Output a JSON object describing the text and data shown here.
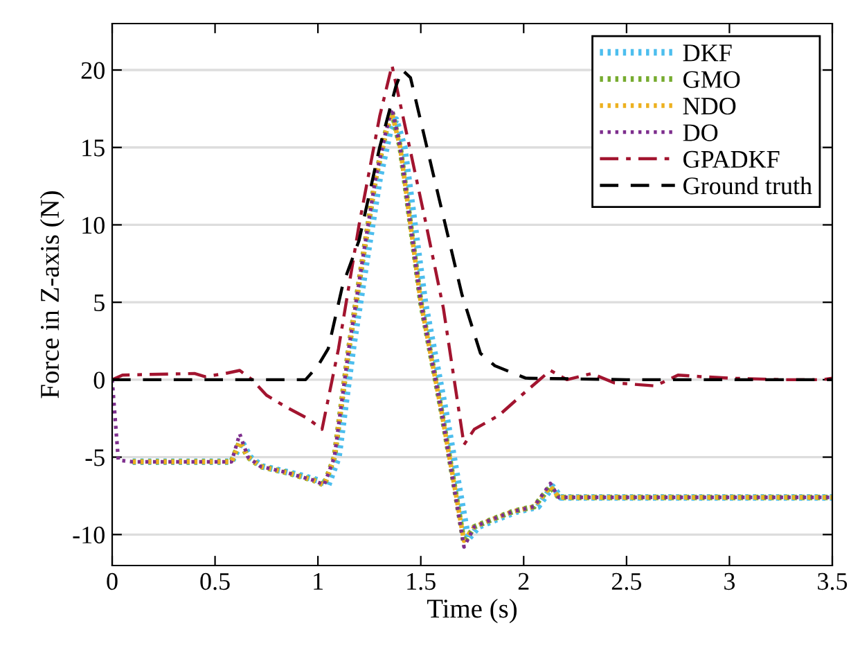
{
  "chart_data": {
    "type": "line",
    "xlabel": "Time (s)",
    "ylabel": "Force in Z-axis (N)",
    "xlim": [
      0,
      3.5
    ],
    "ylim": [
      -12,
      23
    ],
    "xticks": [
      0,
      0.5,
      1,
      1.5,
      2,
      2.5,
      3,
      3.5
    ],
    "yticks": [
      -10,
      -5,
      0,
      5,
      10,
      15,
      20
    ],
    "grid": "y",
    "legend": "top right",
    "marker": "none",
    "series": [
      {
        "name": "DKF",
        "color": "#4dbeee",
        "line_style": "dotted",
        "x": [
          0.1,
          0.58,
          0.63,
          0.67,
          0.73,
          0.86,
          0.92,
          1.0,
          1.05,
          1.1,
          1.17,
          1.24,
          1.3,
          1.35,
          1.38,
          1.42,
          1.52,
          1.62,
          1.73,
          1.78,
          1.87,
          1.97,
          2.07,
          2.14,
          2.18,
          2.5,
          3.0,
          3.5
        ],
        "values": [
          -5.3,
          -5.3,
          -4.0,
          -5.0,
          -5.6,
          -6.0,
          -6.2,
          -6.5,
          -6.8,
          -5.0,
          2,
          8,
          13,
          16,
          16.8,
          15,
          5,
          -2,
          -10.3,
          -9.5,
          -9,
          -8.5,
          -8.2,
          -6.9,
          -7.6,
          -7.6,
          -7.6,
          -7.6
        ]
      },
      {
        "name": "GMO",
        "color": "#77ac30",
        "line_style": "dotted",
        "x": [
          0.1,
          0.58,
          0.62,
          0.66,
          0.72,
          0.85,
          0.9,
          0.98,
          1.03,
          1.08,
          1.15,
          1.22,
          1.28,
          1.33,
          1.36,
          1.4,
          1.5,
          1.6,
          1.71,
          1.76,
          1.85,
          1.95,
          2.05,
          2.13,
          2.17,
          2.5,
          3.0,
          3.5
        ],
        "values": [
          -5.3,
          -5.3,
          -4.0,
          -5.0,
          -5.6,
          -6.0,
          -6.2,
          -6.5,
          -6.8,
          -5.0,
          2,
          8,
          13,
          16,
          17.3,
          15,
          5,
          -2,
          -10.5,
          -9.5,
          -9,
          -8.5,
          -8.2,
          -6.9,
          -7.6,
          -7.6,
          -7.6,
          -7.6
        ]
      },
      {
        "name": "NDO",
        "color": "#edb120",
        "line_style": "dotted",
        "x": [
          0.1,
          0.58,
          0.62,
          0.66,
          0.72,
          0.85,
          0.9,
          0.98,
          1.03,
          1.08,
          1.15,
          1.22,
          1.28,
          1.33,
          1.36,
          1.4,
          1.5,
          1.6,
          1.71,
          1.76,
          1.85,
          1.95,
          2.05,
          2.13,
          2.17,
          2.5,
          3.0,
          3.5
        ],
        "values": [
          -5.3,
          -5.3,
          -4.0,
          -5.0,
          -5.6,
          -6.0,
          -6.2,
          -6.5,
          -6.8,
          -5.0,
          2,
          8,
          13,
          16,
          17.2,
          15,
          5,
          -2,
          -10.4,
          -9.5,
          -9,
          -8.5,
          -8.2,
          -6.9,
          -7.6,
          -7.6,
          -7.6,
          -7.6
        ]
      },
      {
        "name": "DO",
        "color": "#7e2f8e",
        "line_style": "dotted",
        "x": [
          0,
          0.03,
          0.1,
          0.58,
          0.62,
          0.66,
          0.72,
          0.85,
          0.9,
          0.98,
          1.03,
          1.08,
          1.15,
          1.22,
          1.28,
          1.33,
          1.36,
          1.4,
          1.5,
          1.6,
          1.71,
          1.76,
          1.85,
          1.95,
          2.05,
          2.13,
          2.17,
          2.5,
          3.0,
          3.5
        ],
        "values": [
          0,
          -5.2,
          -5.3,
          -5.3,
          -3.5,
          -5.0,
          -5.6,
          -6.0,
          -6.2,
          -6.5,
          -6.8,
          -5.0,
          2,
          8,
          13,
          16,
          17.5,
          15,
          5,
          -2,
          -10.8,
          -9.5,
          -9,
          -8.5,
          -8.2,
          -6.7,
          -7.6,
          -7.6,
          -7.6,
          -7.6
        ]
      },
      {
        "name": "GPADKF",
        "color": "#a2142f",
        "line_style": "dashdot",
        "x": [
          0,
          0.05,
          0.4,
          0.45,
          0.55,
          0.62,
          0.68,
          0.75,
          0.85,
          0.95,
          1.02,
          1.1,
          1.2,
          1.3,
          1.36,
          1.52,
          1.61,
          1.71,
          1.76,
          1.88,
          1.99,
          2.13,
          2.21,
          2.33,
          2.44,
          2.64,
          2.75,
          2.86,
          3.0,
          3.27,
          3.45,
          3.5
        ],
        "values": [
          0,
          0.3,
          0.4,
          0.2,
          0.4,
          0.6,
          0,
          -1,
          -1.8,
          -2.5,
          -3.2,
          2,
          10,
          17,
          20.3,
          10.4,
          4.6,
          -4.2,
          -3.2,
          -2.3,
          -1.0,
          0.6,
          0,
          0.4,
          -0.2,
          -0.4,
          0.3,
          0.2,
          0.1,
          0,
          0,
          0.1
        ]
      },
      {
        "name": "Ground truth",
        "color": "#000000",
        "line_style": "dashed",
        "x": [
          0,
          0.94,
          1.0,
          1.05,
          1.12,
          1.2,
          1.3,
          1.38,
          1.41,
          1.45,
          1.56,
          1.7,
          1.79,
          1.86,
          2.01,
          2.5,
          3.0,
          3.5
        ],
        "values": [
          0,
          0,
          0.9,
          2,
          6.1,
          9,
          15,
          19,
          20,
          19.5,
          13.3,
          5.5,
          1.7,
          0.9,
          0.1,
          0,
          0,
          0
        ]
      }
    ]
  }
}
